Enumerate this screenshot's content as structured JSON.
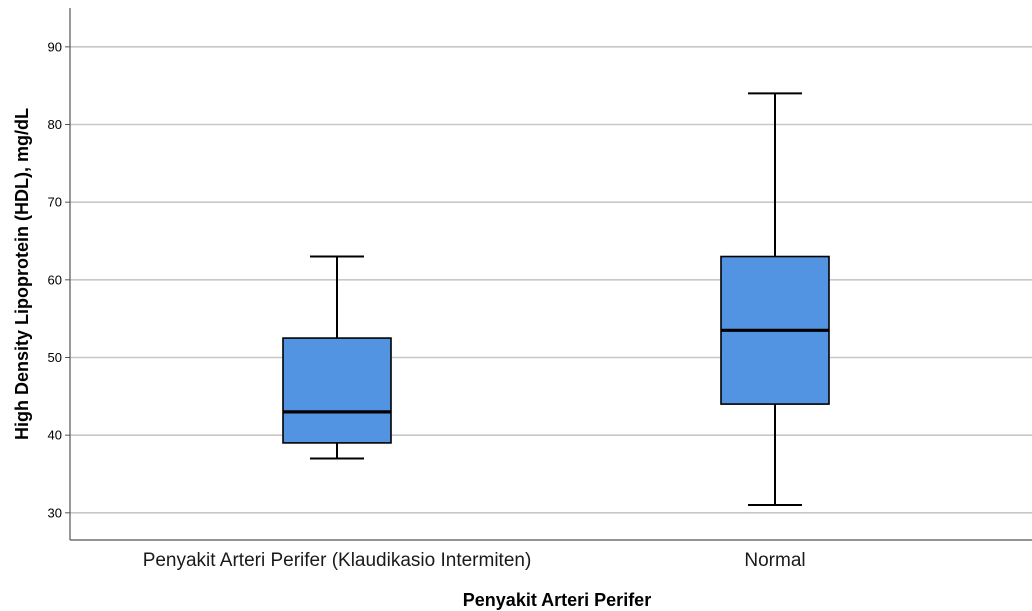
{
  "chart_data": {
    "type": "box",
    "title": "",
    "xlabel": "Penyakit Arteri Perifer",
    "ylabel": "High Density Lipoprotein (HDL), mg/dL",
    "categories": [
      "Penyakit Arteri Perifer (Klaudikasio Intermiten)",
      "Normal"
    ],
    "boxes": [
      {
        "category": "Penyakit Arteri Perifer (Klaudikasio Intermiten)",
        "min": 37,
        "q1": 39,
        "median": 43,
        "q3": 52.5,
        "max": 63
      },
      {
        "category": "Normal",
        "min": 31,
        "q1": 44,
        "median": 53.5,
        "q3": 63,
        "max": 84
      }
    ],
    "ylim": [
      26.5,
      95
    ],
    "yticks": [
      30,
      40,
      50,
      60,
      70,
      80,
      90
    ],
    "grid": true,
    "box_color": "#5294e2",
    "gridline_color": "#c8c8c8"
  }
}
